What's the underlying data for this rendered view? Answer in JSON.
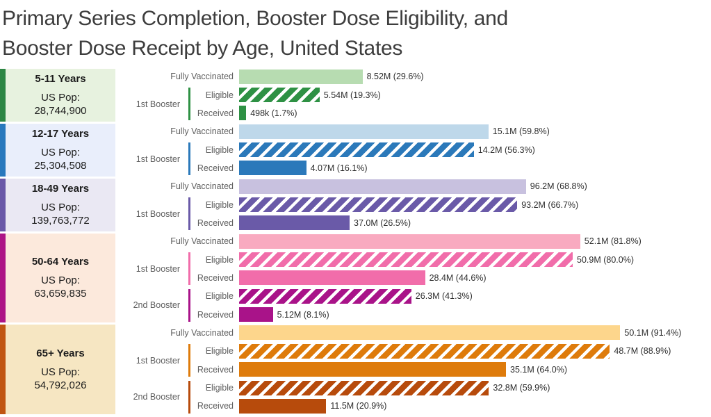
{
  "title_lines": [
    "Primary Series Completion, Booster Dose Eligibility, and",
    "Booster Dose Receipt by Age, United States"
  ],
  "colors": {
    "background": "#ffffff",
    "title_text": "#3d3d3d",
    "label_gray": "#5f5f5f",
    "value_text": "#2e2e2e"
  },
  "chart_data": {
    "type": "bar",
    "orientation": "horizontal",
    "value_axis": {
      "min": 0,
      "max": 100,
      "unit": "%"
    },
    "grid": false,
    "legend": false,
    "groups": [
      {
        "age_label": "5-11 Years",
        "pop_label": "US Pop:",
        "population": "28,744,900",
        "stripe_color": "#2d8644",
        "block_bg": "#e7f2df",
        "fully": {
          "label": "Fully Vaccinated",
          "value": "8.52M",
          "percent": 29.6,
          "display": "8.52M (29.6%)",
          "color": "#b7dcb1"
        },
        "boosters": [
          {
            "name": "1st Booster",
            "color": "#2e9144",
            "eligible": {
              "label": "Eligible",
              "value": "5.54M",
              "percent": 19.3,
              "display": "5.54M (19.3%)"
            },
            "received": {
              "label": "Received",
              "value": "498k",
              "percent": 1.7,
              "display": "498k (1.7%)"
            }
          }
        ]
      },
      {
        "age_label": "12-17 Years",
        "pop_label": "US Pop:",
        "population": "25,304,508",
        "stripe_color": "#2878bd",
        "block_bg": "#e9eefb",
        "fully": {
          "label": "Fully Vaccinated",
          "value": "15.1M",
          "percent": 59.8,
          "display": "15.1M (59.8%)",
          "color": "#bed8ea"
        },
        "boosters": [
          {
            "name": "1st Booster",
            "color": "#2b79ba",
            "eligible": {
              "label": "Eligible",
              "value": "14.2M",
              "percent": 56.3,
              "display": "14.2M (56.3%)"
            },
            "received": {
              "label": "Received",
              "value": "4.07M",
              "percent": 16.1,
              "display": "4.07M (16.1%)"
            }
          }
        ]
      },
      {
        "age_label": "18-49 Years",
        "pop_label": "US Pop:",
        "population": "139,763,772",
        "stripe_color": "#6a58a8",
        "block_bg": "#eae8f3",
        "fully": {
          "label": "Fully Vaccinated",
          "value": "96.2M",
          "percent": 68.8,
          "display": "96.2M (68.8%)",
          "color": "#c8c1df"
        },
        "boosters": [
          {
            "name": "1st Booster",
            "color": "#6a5aa8",
            "eligible": {
              "label": "Eligible",
              "value": "93.2M",
              "percent": 66.7,
              "display": "93.2M (66.7%)"
            },
            "received": {
              "label": "Received",
              "value": "37.0M",
              "percent": 26.5,
              "display": "37.0M (26.5%)"
            }
          }
        ]
      },
      {
        "age_label": "50-64 Years",
        "pop_label": "US Pop:",
        "population": "63,659,835",
        "stripe_color": "#ad1486",
        "block_bg": "#fce9dc",
        "fully": {
          "label": "Fully Vaccinated",
          "value": "52.1M",
          "percent": 81.8,
          "display": "52.1M (81.8%)",
          "color": "#f9aac0"
        },
        "boosters": [
          {
            "name": "1st Booster",
            "color": "#f16daa",
            "eligible": {
              "label": "Eligible",
              "value": "50.9M",
              "percent": 80.0,
              "display": "50.9M (80.0%)"
            },
            "received": {
              "label": "Received",
              "value": "28.4M",
              "percent": 44.6,
              "display": "28.4M (44.6%)"
            }
          },
          {
            "name": "2nd Booster",
            "color": "#a91389",
            "eligible": {
              "label": "Eligible",
              "value": "26.3M",
              "percent": 41.3,
              "display": "26.3M (41.3%)"
            },
            "received": {
              "label": "Received",
              "value": "5.12M",
              "percent": 8.1,
              "display": "5.12M (8.1%)"
            }
          }
        ]
      },
      {
        "age_label": "65+ Years",
        "pop_label": "US Pop:",
        "population": "54,792,026",
        "stripe_color": "#c05511",
        "block_bg": "#f6e6c2",
        "fully": {
          "label": "Fully Vaccinated",
          "value": "50.1M",
          "percent": 91.4,
          "display": "50.1M (91.4%)",
          "color": "#fdd68c"
        },
        "boosters": [
          {
            "name": "1st Booster",
            "color": "#de7b0b",
            "eligible": {
              "label": "Eligible",
              "value": "48.7M",
              "percent": 88.9,
              "display": "48.7M (88.9%)"
            },
            "received": {
              "label": "Received",
              "value": "35.1M",
              "percent": 64.0,
              "display": "35.1M (64.0%)"
            }
          },
          {
            "name": "2nd Booster",
            "color": "#b74b0c",
            "eligible": {
              "label": "Eligible",
              "value": "32.8M",
              "percent": 59.9,
              "display": "32.8M (59.9%)"
            },
            "received": {
              "label": "Received",
              "value": "11.5M",
              "percent": 20.9,
              "display": "11.5M (20.9%)"
            }
          }
        ]
      }
    ]
  }
}
